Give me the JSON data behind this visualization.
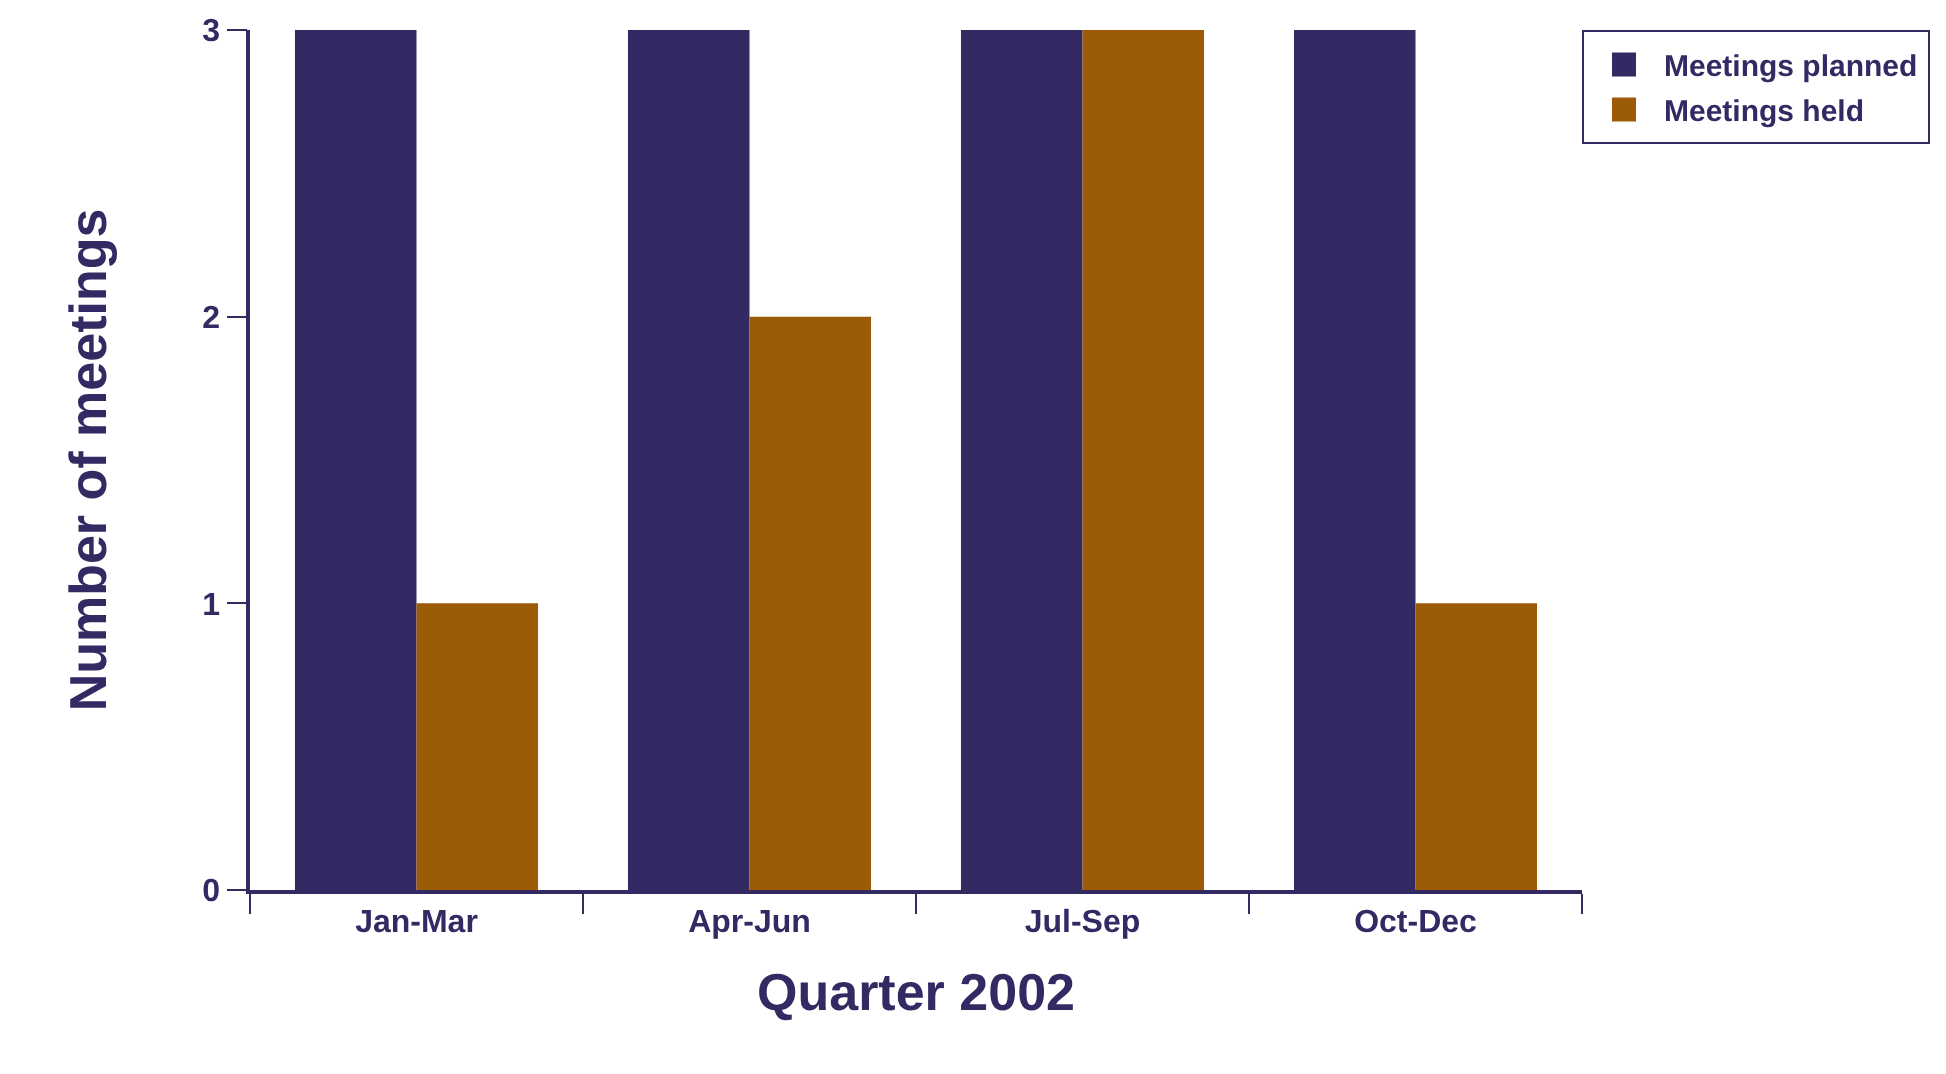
{
  "chart_data": {
    "type": "bar",
    "xlabel": "Quarter 2002",
    "ylabel": "Number of meetings",
    "categories": [
      "Jan-Mar",
      "Apr-Jun",
      "Jul-Sep",
      "Oct-Dec"
    ],
    "series": [
      {
        "name": "Meetings planned",
        "color": "#332a63",
        "values": [
          3,
          3,
          3,
          3
        ]
      },
      {
        "name": "Meetings held",
        "color": "#9c5b07",
        "values": [
          1,
          2,
          3,
          1
        ]
      }
    ],
    "ylim": [
      0,
      3
    ],
    "yticks": [
      0,
      1,
      2,
      3
    ],
    "legend": "top right"
  }
}
